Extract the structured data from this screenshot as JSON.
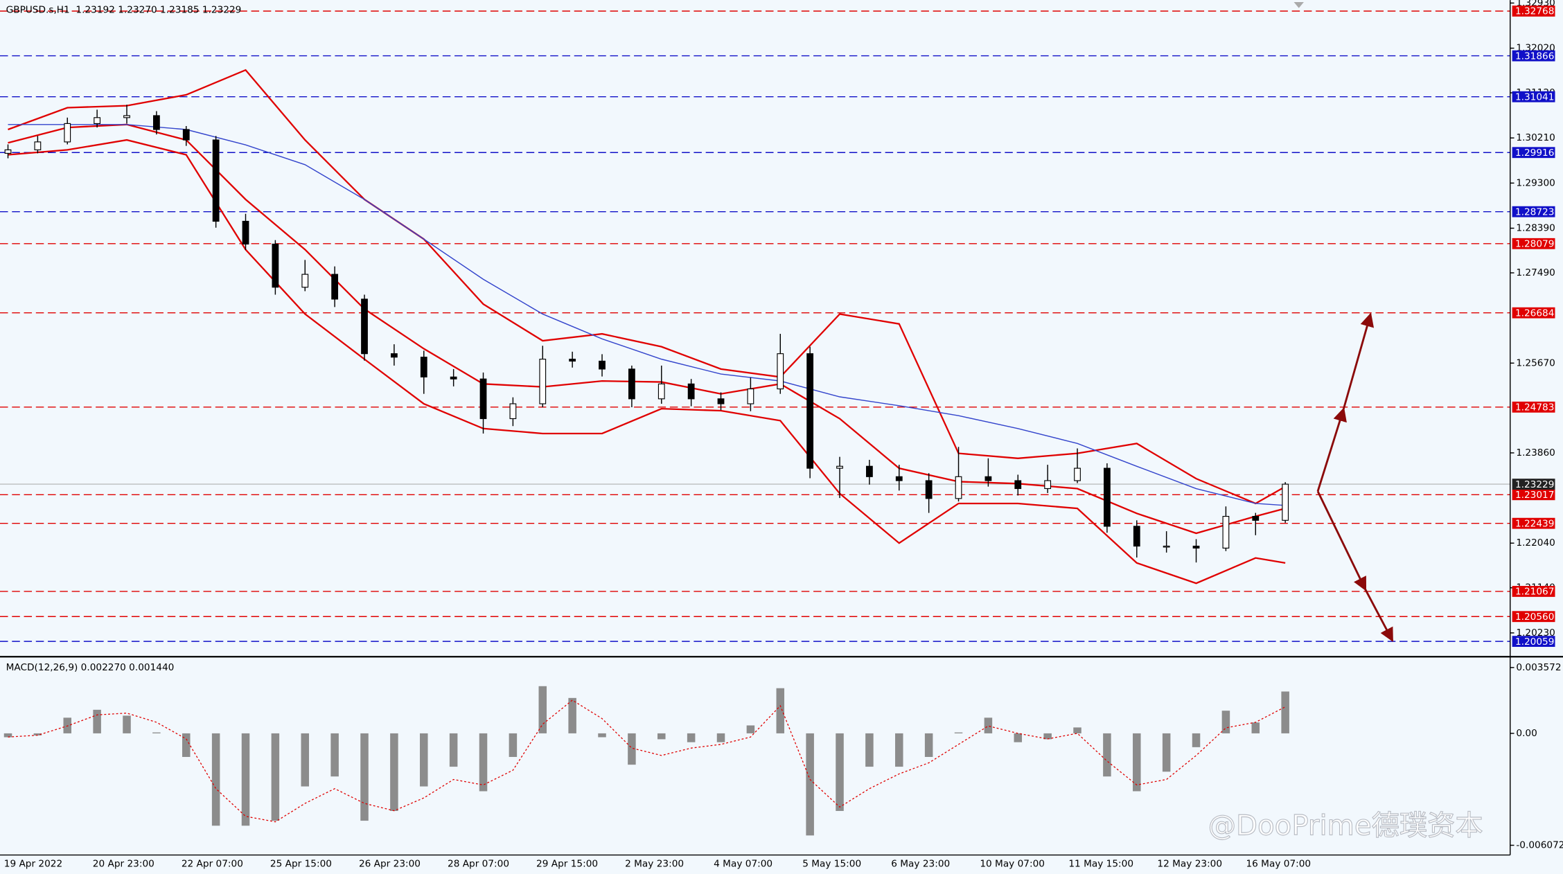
{
  "time_axis": [
    "19 Apr 2022",
    "20 Apr 23:00",
    "22 Apr 07:00",
    "25 Apr 15:00",
    "26 Apr 23:00",
    "28 Apr 07:00",
    "29 Apr 15:00",
    "2 May 23:00",
    "4 May 07:00",
    "5 May 15:00",
    "6 May 23:00",
    "10 May 07:00",
    "11 May 15:00",
    "12 May 23:00",
    "16 May 07:00"
  ],
  "watermark": "@DooPrime德璞资本",
  "chart_data": [
    {
      "type": "candlestick",
      "title": "GBPUSD.s,H1  1.23192 1.23270 1.23185 1.23229",
      "open": [
        1.299,
        1.2997,
        1.3013,
        1.305,
        1.3062,
        1.3066,
        1.3038,
        1.3017,
        1.2853,
        1.2807,
        1.272,
        1.2746,
        1.2696,
        1.2586,
        1.2579,
        1.2539,
        1.2535,
        1.2455,
        1.2485,
        1.2575,
        1.2571,
        1.2555,
        1.2495,
        1.2525,
        1.2495,
        1.2485,
        1.2515,
        1.2586,
        1.2355,
        1.2359,
        1.2338,
        1.233,
        1.2294,
        1.2338,
        1.233,
        1.2314,
        1.233,
        1.2355,
        1.2238,
        1.2198,
        1.2198,
        1.2194,
        1.2258,
        1.225
      ],
      "high": [
        1.3008,
        1.3025,
        1.3062,
        1.3078,
        1.3088,
        1.3075,
        1.3045,
        1.3025,
        1.2868,
        1.2815,
        1.2775,
        1.2762,
        1.2705,
        1.2605,
        1.2592,
        1.2555,
        1.2548,
        1.2498,
        1.2602,
        1.259,
        1.2585,
        1.2562,
        1.2562,
        1.2535,
        1.2508,
        1.2538,
        1.2626,
        1.26,
        1.2378,
        1.2372,
        1.2362,
        1.2345,
        1.2398,
        1.2375,
        1.2342,
        1.2362,
        1.2395,
        1.2365,
        1.225,
        1.2228,
        1.2212,
        1.2278,
        1.2265,
        1.2327
      ],
      "low": [
        1.298,
        1.299,
        1.3008,
        1.3042,
        1.305,
        1.3028,
        1.3005,
        1.284,
        1.2795,
        1.2705,
        1.2712,
        1.268,
        1.2572,
        1.2562,
        1.2505,
        1.252,
        1.2425,
        1.244,
        1.2478,
        1.2558,
        1.254,
        1.2478,
        1.2485,
        1.248,
        1.2472,
        1.247,
        1.2505,
        1.2335,
        1.2295,
        1.2322,
        1.231,
        1.2265,
        1.2288,
        1.2318,
        1.23,
        1.2305,
        1.2325,
        1.2225,
        1.2175,
        1.2185,
        1.2165,
        1.2188,
        1.222,
        1.2245
      ],
      "close": [
        1.2997,
        1.3013,
        1.305,
        1.3062,
        1.3066,
        1.3038,
        1.3017,
        1.2853,
        1.2807,
        1.272,
        1.2746,
        1.2696,
        1.2586,
        1.2579,
        1.2539,
        1.2535,
        1.2455,
        1.2485,
        1.2575,
        1.2571,
        1.2555,
        1.2495,
        1.2525,
        1.2495,
        1.2485,
        1.2515,
        1.2586,
        1.2355,
        1.2359,
        1.2338,
        1.233,
        1.2294,
        1.2338,
        1.233,
        1.2314,
        1.233,
        1.2355,
        1.2238,
        1.2198,
        1.2198,
        1.2194,
        1.2258,
        1.225,
        1.23229
      ],
      "overlay_x": [
        0,
        2,
        4,
        6,
        8,
        10,
        12,
        14,
        16,
        18,
        20,
        22,
        24,
        26,
        28,
        30,
        32,
        34,
        36,
        38,
        40,
        42,
        43
      ],
      "overlays": [
        {
          "color": "#e00000",
          "values": [
            1.3038,
            1.3082,
            1.3086,
            1.3108,
            1.3158,
            1.3017,
            1.2897,
            1.2817,
            1.2686,
            1.2612,
            1.2626,
            1.26,
            1.2555,
            1.2539,
            1.2666,
            1.2646,
            1.2385,
            1.2375,
            1.2385,
            1.2405,
            1.2334,
            1.2284,
            1.2318
          ]
        },
        {
          "color": "#e00000",
          "values": [
            1.3011,
            1.3042,
            1.3048,
            1.3017,
            1.2897,
            1.2796,
            1.2676,
            1.2596,
            1.2525,
            1.2519,
            1.2531,
            1.2529,
            1.2505,
            1.2525,
            1.2455,
            1.2355,
            1.2328,
            1.2324,
            1.2314,
            1.2264,
            1.2224,
            1.2258,
            1.2274
          ]
        },
        {
          "color": "#e00000",
          "values": [
            1.2987,
            1.2997,
            1.3017,
            1.2987,
            1.2796,
            1.2666,
            1.2575,
            1.2485,
            1.2435,
            1.2425,
            1.2425,
            1.2475,
            1.2471,
            1.2451,
            1.2304,
            1.2204,
            1.2284,
            1.2284,
            1.2274,
            1.2164,
            1.2123,
            1.2174,
            1.2164
          ]
        },
        {
          "color": "#3344cc",
          "values": [
            1.3048,
            1.3048,
            1.3048,
            1.3038,
            1.3007,
            1.2967,
            1.2897,
            1.2817,
            1.2736,
            1.2666,
            1.2616,
            1.2575,
            1.2545,
            1.2531,
            1.2499,
            1.2481,
            1.2461,
            1.2435,
            1.2405,
            1.2359,
            1.2314,
            1.2284,
            1.228
          ]
        }
      ],
      "ylim": [
        1.1977,
        1.3299
      ],
      "yticks": [
        {
          "value": 1.3293,
          "label": "1.32930"
        },
        {
          "value": 1.3202,
          "label": "1.32020"
        },
        {
          "value": 1.3112,
          "label": "1.31120"
        },
        {
          "value": 1.3021,
          "label": "1.30210"
        },
        {
          "value": 1.293,
          "label": "1.29300"
        },
        {
          "value": 1.2839,
          "label": "1.28390"
        },
        {
          "value": 1.2749,
          "label": "1.27490"
        },
        {
          "value": 1.2567,
          "label": "1.25670"
        },
        {
          "value": 1.2386,
          "label": "1.23860"
        },
        {
          "value": 1.2204,
          "label": "1.22040"
        },
        {
          "value": 1.2114,
          "label": "1.21140"
        },
        {
          "value": 1.2023,
          "label": "1.20230"
        }
      ],
      "levels": [
        {
          "value": 1.32768,
          "color": "#e00000"
        },
        {
          "value": 1.31866,
          "color": "#1010c8"
        },
        {
          "value": 1.31041,
          "color": "#1010c8"
        },
        {
          "value": 1.29916,
          "color": "#1010c8"
        },
        {
          "value": 1.28723,
          "color": "#1010c8"
        },
        {
          "value": 1.28079,
          "color": "#e00000"
        },
        {
          "value": 1.26684,
          "color": "#e00000"
        },
        {
          "value": 1.24783,
          "color": "#e00000"
        },
        {
          "value": 1.23017,
          "color": "#e00000"
        },
        {
          "value": 1.22439,
          "color": "#e00000"
        },
        {
          "value": 1.21067,
          "color": "#e00000"
        },
        {
          "value": 1.2056,
          "label": "1.20560",
          "color": "#e00000"
        },
        {
          "value": 1.20059,
          "color": "#1010c8"
        }
      ],
      "last": 1.23229
    },
    {
      "type": "bar",
      "title": "MACD(12,26,9) 0.002270 0.001440",
      "color": "#8c8c8c",
      "values": [
        -0.00021,
        -0.00011,
        0.00085,
        0.00128,
        0.00096,
        5e-05,
        -0.00128,
        -0.00501,
        -0.00501,
        -0.00474,
        -0.00288,
        -0.00234,
        -0.00474,
        -0.00421,
        -0.00288,
        -0.00181,
        -0.00314,
        -0.00128,
        0.00256,
        0.00192,
        -0.00021,
        -0.0017,
        -0.00032,
        -0.00048,
        -0.00048,
        0.00043,
        0.00245,
        -0.00554,
        -0.00421,
        -0.00181,
        -0.00181,
        -0.00128,
        5e-05,
        0.00085,
        -0.00048,
        -0.00032,
        0.00032,
        -0.00234,
        -0.00314,
        -0.00208,
        -0.00075,
        0.00123,
        0.00059,
        0.00227
      ],
      "signal": {
        "color": "#e00000",
        "values": [
          -0.0002,
          -0.0001,
          0.0004,
          0.001,
          0.0011,
          0.0006,
          -0.0003,
          -0.003,
          -0.0045,
          -0.0048,
          -0.0038,
          -0.003,
          -0.0038,
          -0.0042,
          -0.0035,
          -0.0025,
          -0.0028,
          -0.002,
          0.0005,
          0.0018,
          0.0008,
          -0.0008,
          -0.0012,
          -0.0008,
          -0.0006,
          -0.0002,
          0.0015,
          -0.0025,
          -0.004,
          -0.003,
          -0.0022,
          -0.0016,
          -0.0006,
          0.0004,
          0,
          -0.0003,
          0,
          -0.0015,
          -0.0028,
          -0.0025,
          -0.0012,
          0.0003,
          0.0006,
          0.00144
        ]
      },
      "ylim": [
        -0.0066,
        0.00405
      ],
      "yticks": [
        0.003572,
        {
          "value": 0,
          "label": "0.00"
        },
        -0.006072
      ]
    }
  ]
}
